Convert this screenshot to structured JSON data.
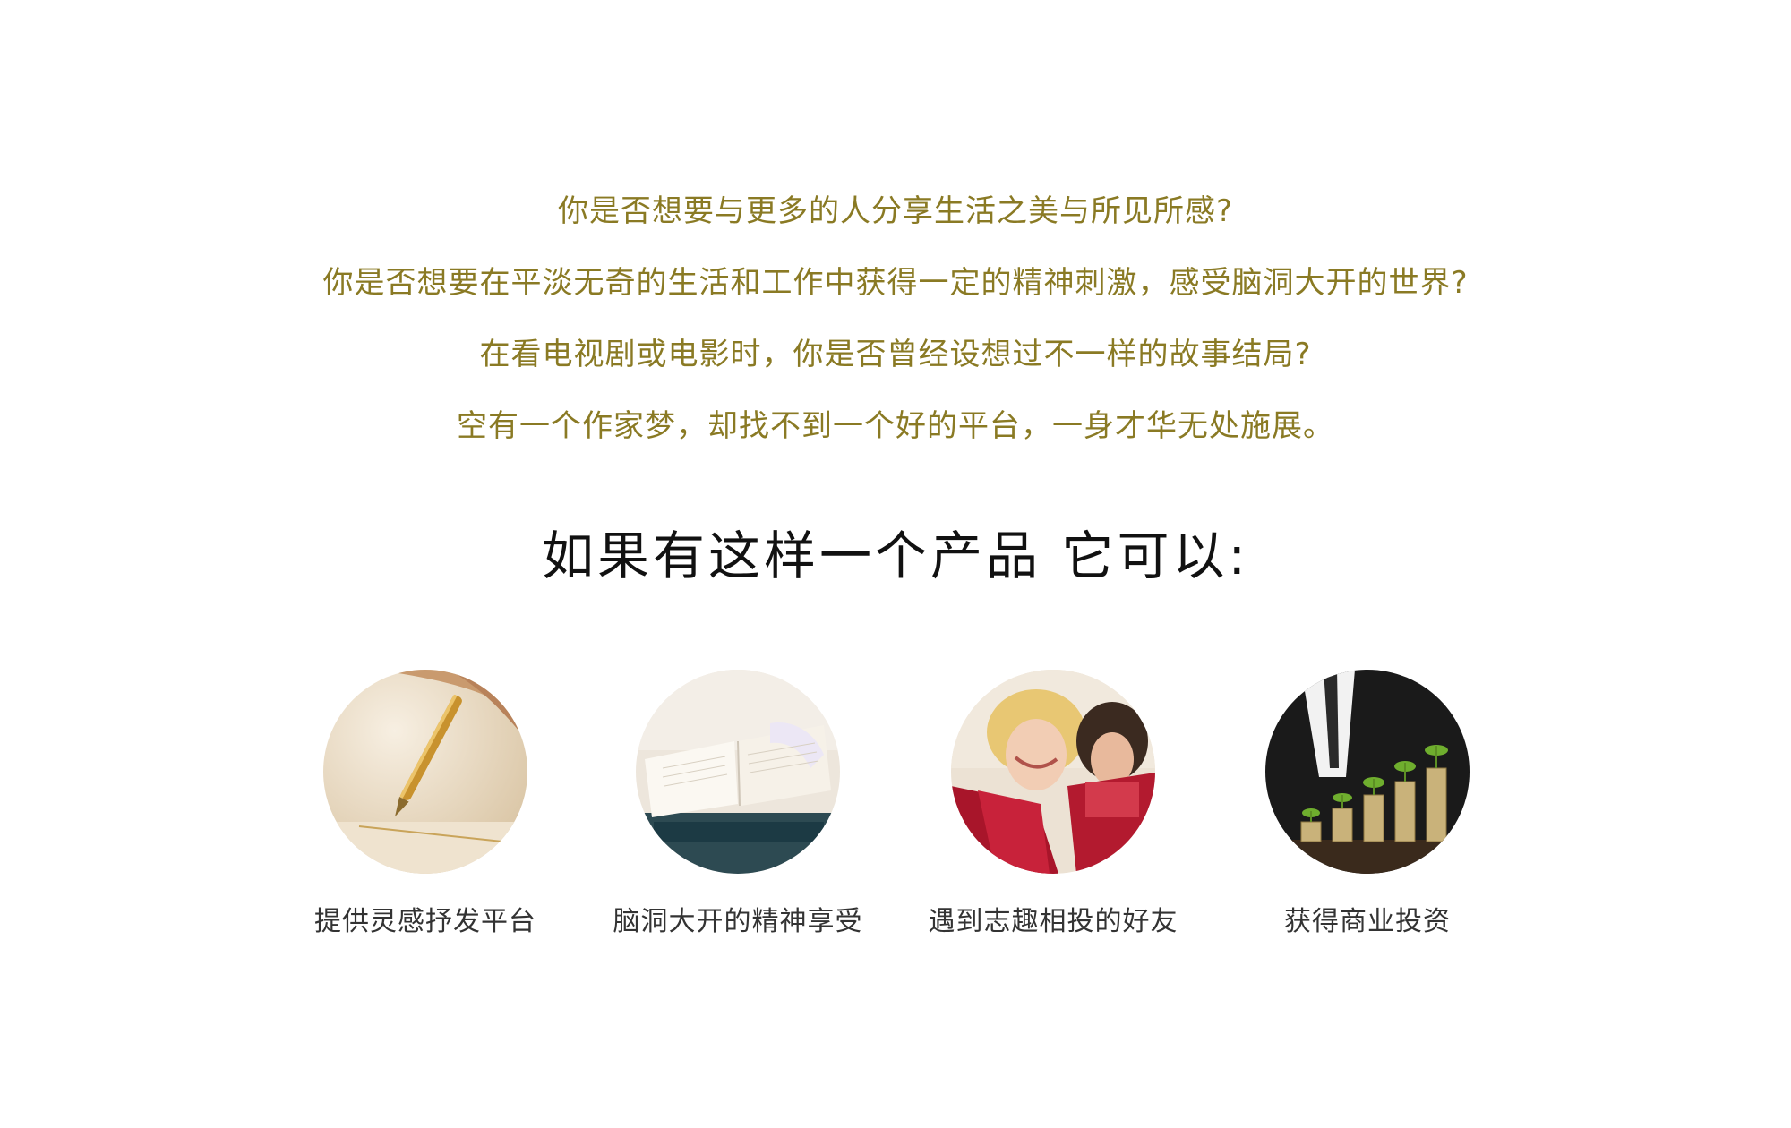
{
  "intro": {
    "lines": [
      "你是否想要与更多的人分享生活之美与所见所感?",
      "你是否想要在平淡无奇的生活和工作中获得一定的精神刺激，感受脑洞大开的世界?",
      "在看电视剧或电影时，你是否曾经设想过不一样的故事结局?",
      "空有一个作家梦，却找不到一个好的平台，一身才华无处施展。"
    ],
    "color": "#8a7a24"
  },
  "headline": "如果有这样一个产品 它可以:",
  "features": [
    {
      "label": "提供灵感抒发平台",
      "icon": "pen-writing-image"
    },
    {
      "label": "脑洞大开的精神享受",
      "icon": "open-book-image"
    },
    {
      "label": "遇到志趣相投的好友",
      "icon": "women-reading-image"
    },
    {
      "label": "获得商业投资",
      "icon": "coins-plants-image"
    }
  ]
}
